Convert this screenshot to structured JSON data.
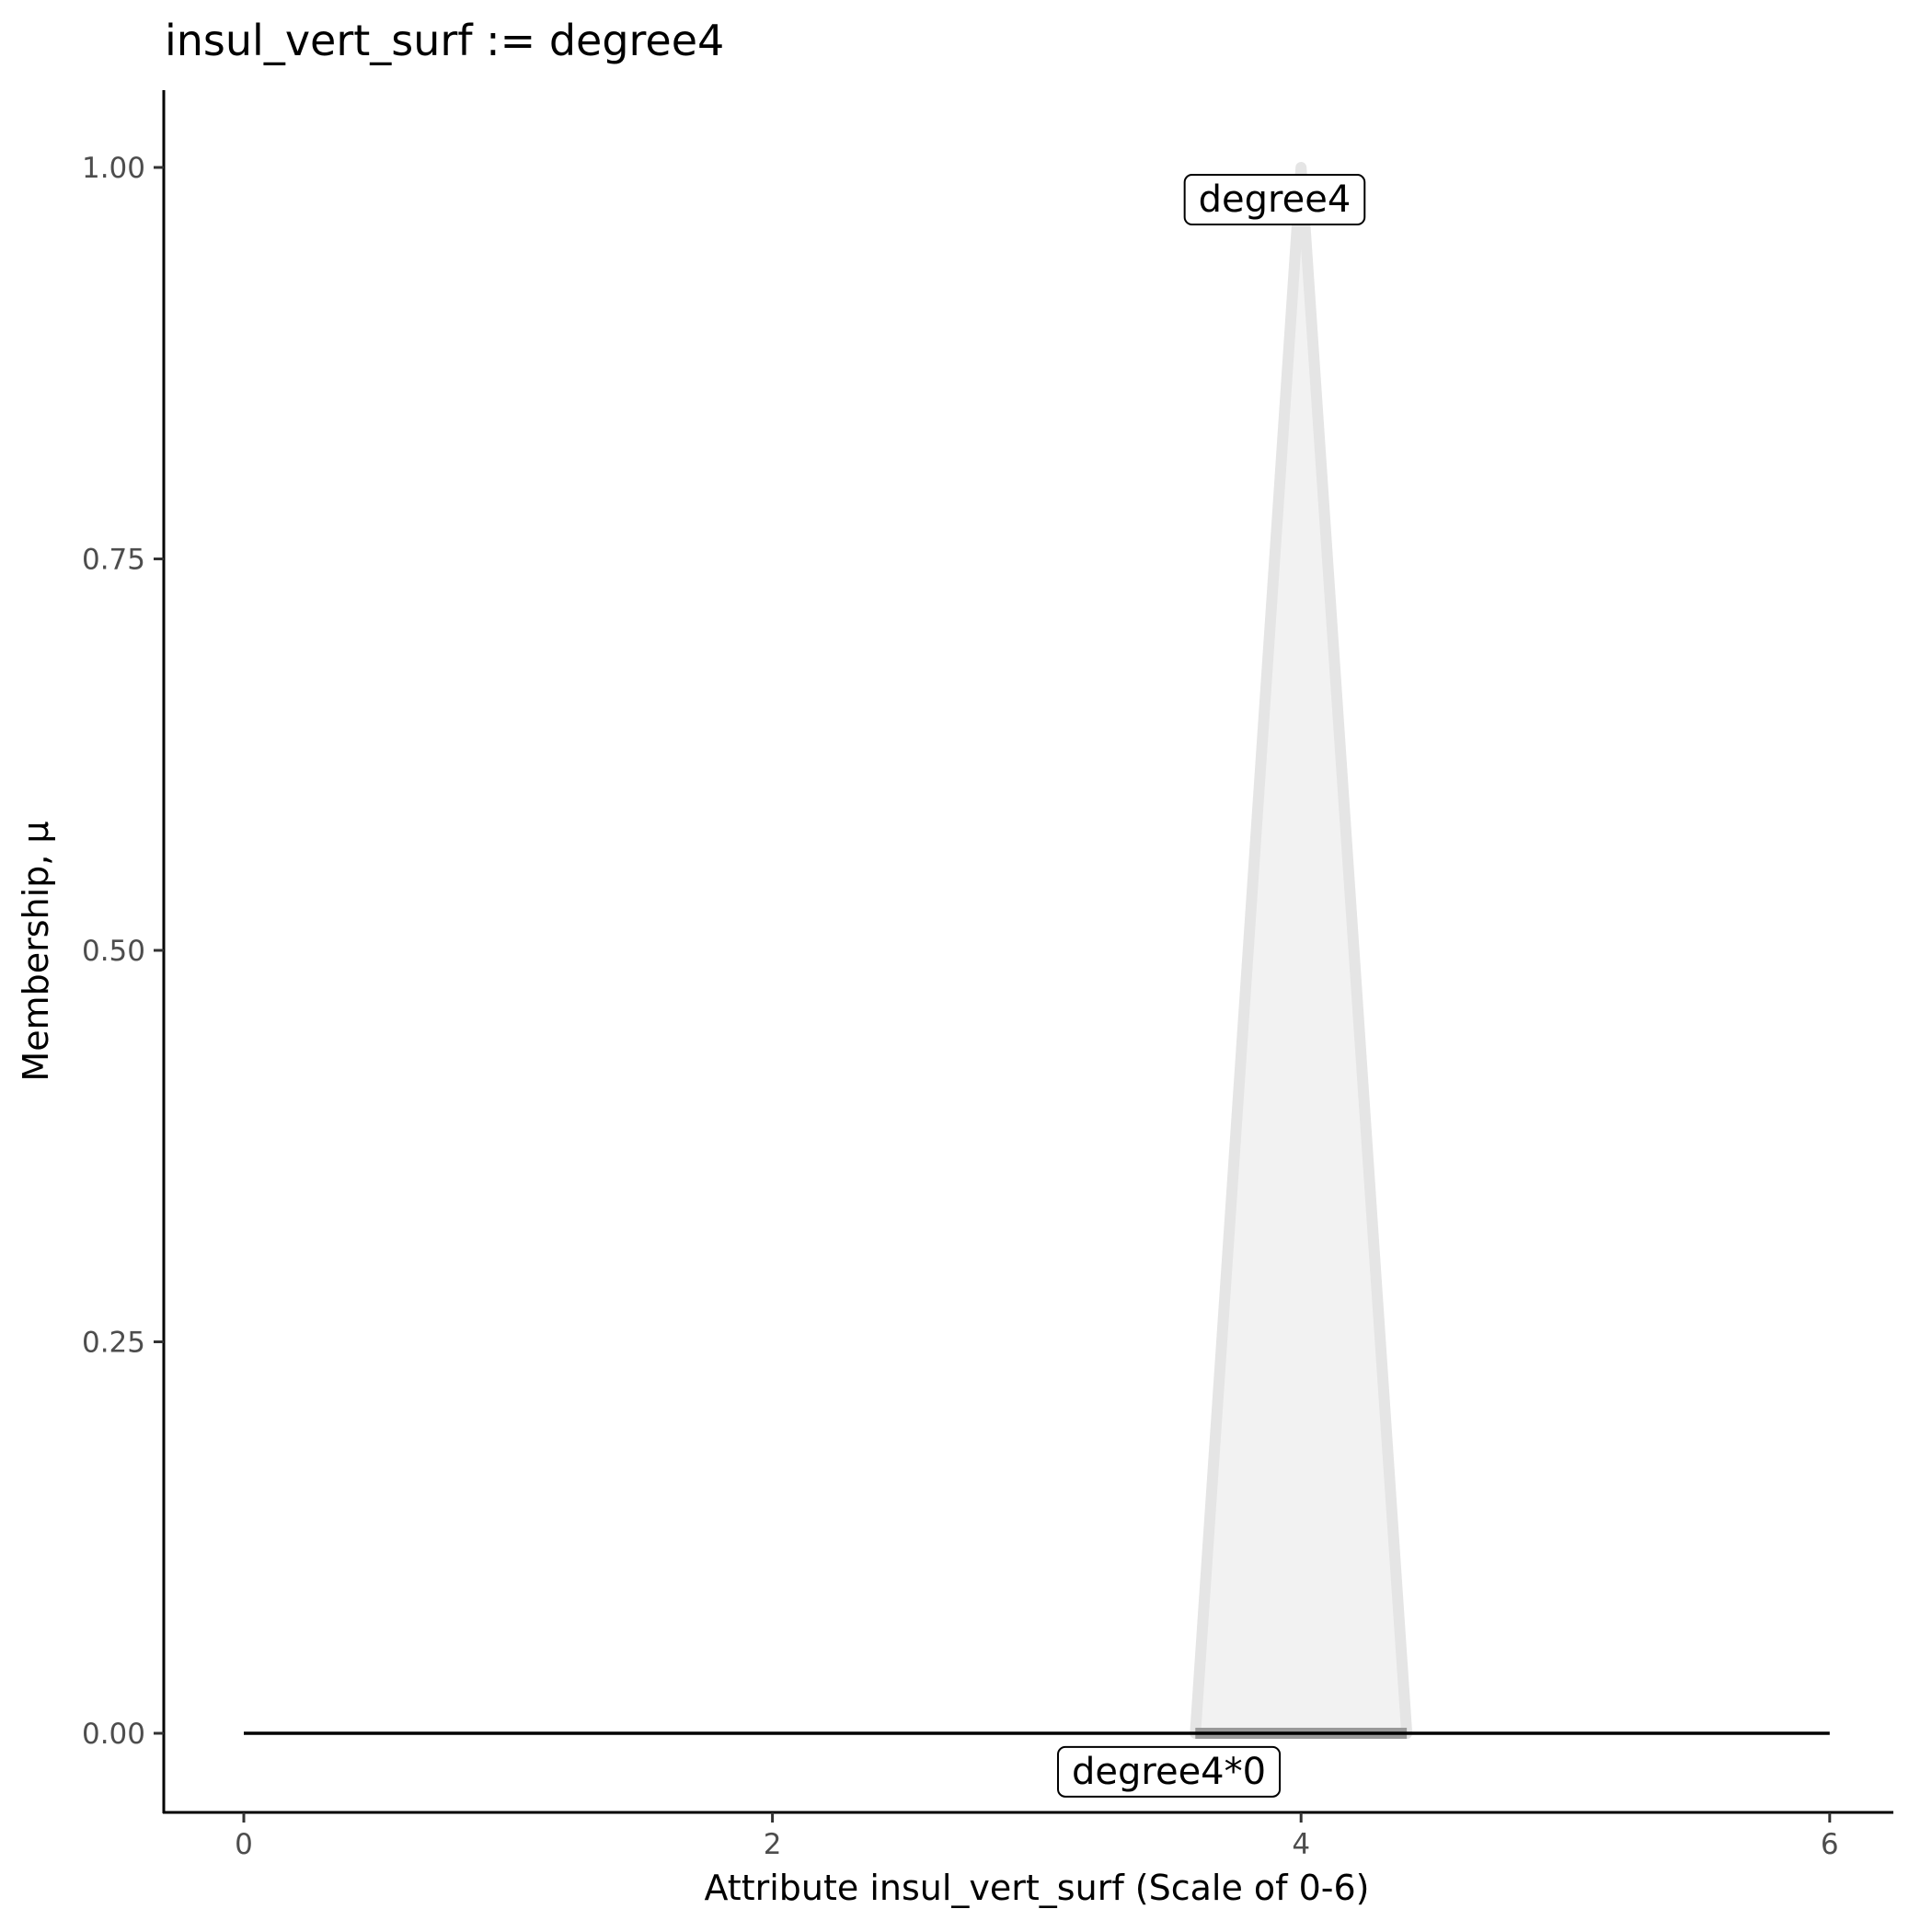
{
  "chart_data": {
    "type": "area",
    "title": "insul_vert_surf := degree4",
    "xlabel": "Attribute insul_vert_surf (Scale of 0-6)",
    "ylabel": "Membership, μ",
    "xlim": [
      -0.3,
      6.25
    ],
    "ylim": [
      -0.05,
      1.05
    ],
    "x_ticks": [
      0,
      2,
      4,
      6
    ],
    "x_tick_labels": [
      "0",
      "2",
      "4",
      "6"
    ],
    "y_ticks": [
      0,
      0.25,
      0.5,
      0.75,
      1
    ],
    "y_tick_labels": [
      "0.00",
      "0.25",
      "0.50",
      "0.75",
      "1.00"
    ],
    "grid": false,
    "series": [
      {
        "name": "degree4",
        "x": [
          3.6,
          4.0,
          4.4
        ],
        "y": [
          0,
          1,
          0
        ],
        "fill": "#f2f2f2",
        "stroke": "#e5e5e5"
      }
    ],
    "baseline": {
      "x": [
        0,
        6
      ],
      "y": [
        0,
        0
      ],
      "color": "#000000"
    },
    "support_segment": {
      "x": [
        3.6,
        4.4
      ],
      "y": 0,
      "color": "#999999"
    },
    "annotations": [
      {
        "text": "degree4",
        "x": 3.9,
        "y": 0.98
      },
      {
        "text": "degree4*0",
        "x": 3.5,
        "y": -0.024
      }
    ]
  }
}
